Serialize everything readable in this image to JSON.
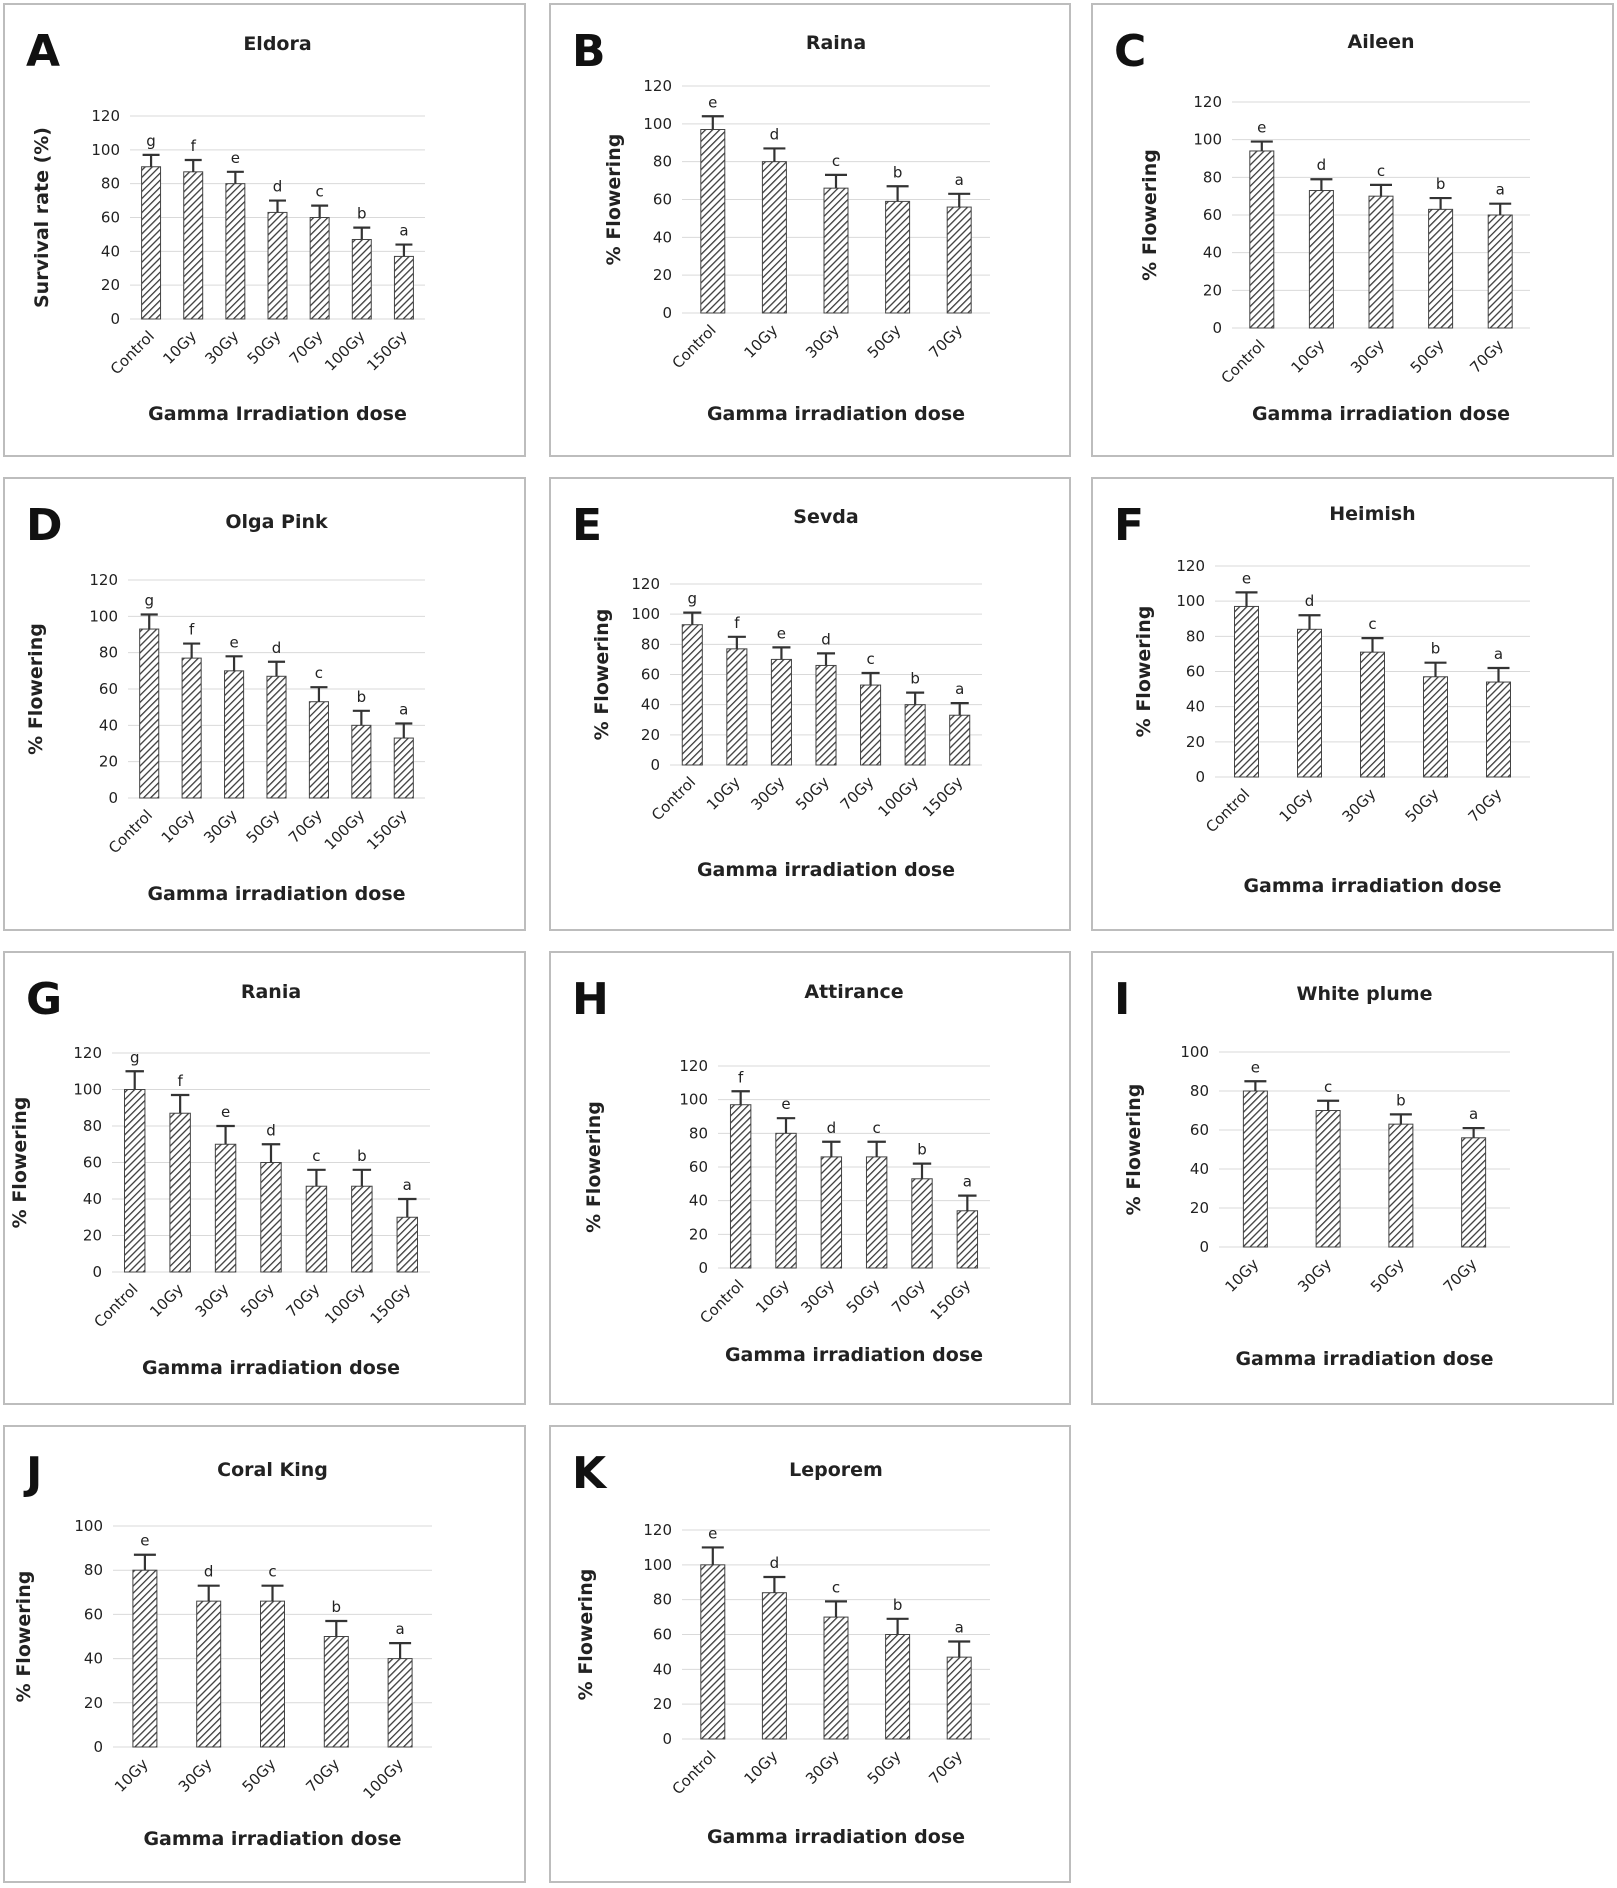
{
  "chart_data": [
    {
      "panel": "A",
      "type": "bar",
      "title": "Eldora",
      "xlabel": "Gamma Irradiation dose",
      "ylabel": "Survival rate (%)",
      "ylim": [
        0,
        120
      ],
      "yticks": [
        0,
        20,
        40,
        60,
        80,
        100,
        120
      ],
      "categories": [
        "Control",
        "10Gy",
        "30Gy",
        "50Gy",
        "70Gy",
        "100Gy",
        "150Gy"
      ],
      "values": [
        90,
        87,
        80,
        63,
        60,
        47,
        37
      ],
      "errors": [
        7,
        7,
        7,
        7,
        7,
        7,
        7
      ],
      "letters": [
        "g",
        "f",
        "e",
        "d",
        "c",
        "b",
        "a"
      ]
    },
    {
      "panel": "B",
      "type": "bar",
      "title": "Raina",
      "xlabel": "Gamma irradiation dose",
      "ylabel": "% Flowering",
      "ylim": [
        0,
        120
      ],
      "yticks": [
        0,
        20,
        40,
        60,
        80,
        100,
        120
      ],
      "categories": [
        "Control",
        "10Gy",
        "30Gy",
        "50Gy",
        "70Gy"
      ],
      "values": [
        97,
        80,
        66,
        59,
        56
      ],
      "errors": [
        7,
        7,
        7,
        8,
        7
      ],
      "letters": [
        "e",
        "d",
        "c",
        "b",
        "a"
      ]
    },
    {
      "panel": "C",
      "type": "bar",
      "title": "Aileen",
      "xlabel": "Gamma irradiation dose",
      "ylabel": "% Flowering",
      "ylim": [
        0,
        120
      ],
      "yticks": [
        0,
        20,
        40,
        60,
        80,
        100,
        120
      ],
      "categories": [
        "Control",
        "10Gy",
        "30Gy",
        "50Gy",
        "70Gy"
      ],
      "values": [
        94,
        73,
        70,
        63,
        60
      ],
      "errors": [
        5,
        6,
        6,
        6,
        6
      ],
      "letters": [
        "e",
        "d",
        "c",
        "b",
        "a"
      ]
    },
    {
      "panel": "D",
      "type": "bar",
      "title": "Olga Pink",
      "xlabel": "Gamma irradiation dose",
      "ylabel": "% Flowering",
      "ylim": [
        0,
        120
      ],
      "yticks": [
        0,
        20,
        40,
        60,
        80,
        100,
        120
      ],
      "categories": [
        "Control",
        "10Gy",
        "30Gy",
        "50Gy",
        "70Gy",
        "100Gy",
        "150Gy"
      ],
      "values": [
        93,
        77,
        70,
        67,
        53,
        40,
        33
      ],
      "errors": [
        8,
        8,
        8,
        8,
        8,
        8,
        8
      ],
      "letters": [
        "g",
        "f",
        "e",
        "d",
        "c",
        "b",
        "a"
      ]
    },
    {
      "panel": "E",
      "type": "bar",
      "title": "Sevda",
      "xlabel": "Gamma irradiation dose",
      "ylabel": "% Flowering",
      "ylim": [
        0,
        120
      ],
      "yticks": [
        0,
        20,
        40,
        60,
        80,
        100,
        120
      ],
      "categories": [
        "Control",
        "10Gy",
        "30Gy",
        "50Gy",
        "70Gy",
        "100Gy",
        "150Gy"
      ],
      "values": [
        93,
        77,
        70,
        66,
        53,
        40,
        33
      ],
      "errors": [
        8,
        8,
        8,
        8,
        8,
        8,
        8
      ],
      "letters": [
        "g",
        "f",
        "e",
        "d",
        "c",
        "b",
        "a"
      ]
    },
    {
      "panel": "F",
      "type": "bar",
      "title": "Heimish",
      "xlabel": "Gamma irradiation dose",
      "ylabel": "% Flowering",
      "ylim": [
        0,
        120
      ],
      "yticks": [
        0,
        20,
        40,
        60,
        80,
        100,
        120
      ],
      "categories": [
        "Control",
        "10Gy",
        "30Gy",
        "50Gy",
        "70Gy"
      ],
      "values": [
        97,
        84,
        71,
        57,
        54
      ],
      "errors": [
        8,
        8,
        8,
        8,
        8
      ],
      "letters": [
        "e",
        "d",
        "c",
        "b",
        "a"
      ]
    },
    {
      "panel": "G",
      "type": "bar",
      "title": "Rania",
      "xlabel": "Gamma irradiation dose",
      "ylabel": "% Flowering",
      "ylim": [
        0,
        120
      ],
      "yticks": [
        0,
        20,
        40,
        60,
        80,
        100,
        120
      ],
      "categories": [
        "Control",
        "10Gy",
        "30Gy",
        "50Gy",
        "70Gy",
        "100Gy",
        "150Gy"
      ],
      "values": [
        100,
        87,
        70,
        60,
        47,
        47,
        30
      ],
      "errors": [
        10,
        10,
        10,
        10,
        9,
        9,
        10
      ],
      "letters": [
        "g",
        "f",
        "e",
        "d",
        "c",
        "b",
        "a"
      ]
    },
    {
      "panel": "H",
      "type": "bar",
      "title": "Attirance",
      "xlabel": "Gamma irradiation dose",
      "ylabel": "% Flowering",
      "ylim": [
        0,
        120
      ],
      "yticks": [
        0,
        20,
        40,
        60,
        80,
        100,
        120
      ],
      "categories": [
        "Control",
        "10Gy",
        "30Gy",
        "50Gy",
        "70Gy",
        "150Gy"
      ],
      "values": [
        97,
        80,
        66,
        66,
        53,
        34
      ],
      "errors": [
        8,
        9,
        9,
        9,
        9,
        9
      ],
      "letters": [
        "f",
        "e",
        "d",
        "c",
        "b",
        "a"
      ]
    },
    {
      "panel": "I",
      "type": "bar",
      "title": "White plume",
      "xlabel": "Gamma irradiation dose",
      "ylabel": "% Flowering",
      "ylim": [
        0,
        100
      ],
      "yticks": [
        0,
        20,
        40,
        60,
        80,
        100
      ],
      "categories": [
        "10Gy",
        "30Gy",
        "50Gy",
        "70Gy"
      ],
      "values": [
        80,
        70,
        63,
        56
      ],
      "errors": [
        5,
        5,
        5,
        5
      ],
      "letters": [
        "e",
        "c",
        "b",
        "a"
      ]
    },
    {
      "panel": "J",
      "type": "bar",
      "title": "Coral King",
      "xlabel": "Gamma irradiation dose",
      "ylabel": "% Flowering",
      "ylim": [
        0,
        100
      ],
      "yticks": [
        0,
        20,
        40,
        60,
        80,
        100
      ],
      "categories": [
        "10Gy",
        "30Gy",
        "50Gy",
        "70Gy",
        "100Gy"
      ],
      "values": [
        80,
        66,
        66,
        50,
        40
      ],
      "errors": [
        7,
        7,
        7,
        7,
        7
      ],
      "letters": [
        "e",
        "d",
        "c",
        "b",
        "a"
      ]
    },
    {
      "panel": "K",
      "type": "bar",
      "title": "Leporem",
      "xlabel": "Gamma irradiation dose",
      "ylabel": "% Flowering",
      "ylim": [
        0,
        120
      ],
      "yticks": [
        0,
        20,
        40,
        60,
        80,
        100,
        120
      ],
      "categories": [
        "Control",
        "10Gy",
        "30Gy",
        "50Gy",
        "70Gy"
      ],
      "values": [
        100,
        84,
        70,
        60,
        47
      ],
      "errors": [
        10,
        9,
        9,
        9,
        9
      ],
      "letters": [
        "e",
        "d",
        "c",
        "b",
        "a"
      ]
    }
  ]
}
